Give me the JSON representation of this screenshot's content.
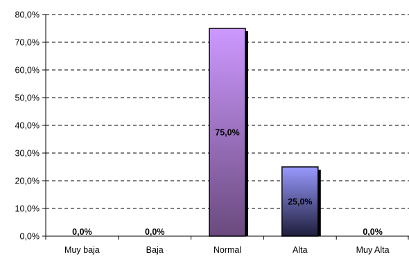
{
  "chart_data": {
    "type": "bar",
    "categories": [
      "Muy baja",
      "Baja",
      "Normal",
      "Alta",
      "Muy Alta"
    ],
    "values": [
      0.0,
      0.0,
      75.0,
      25.0,
      0.0
    ],
    "value_labels": [
      "0,0%",
      "0,0%",
      "75,0%",
      "25,0%",
      "0,0%"
    ],
    "ylim": [
      0,
      80
    ],
    "yticks": [
      0,
      10,
      20,
      30,
      40,
      50,
      60,
      70,
      80
    ],
    "ytick_labels": [
      "0,0%",
      "10,0%",
      "20,0%",
      "30,0%",
      "40,0%",
      "50,0%",
      "60,0%",
      "70,0%",
      "80,0%"
    ],
    "grid": "horizontal dashed",
    "title": "",
    "xlabel": "",
    "ylabel": "",
    "bar_colors": [
      {
        "top": "#cc99ff",
        "bottom": "#6a4a7e"
      },
      {
        "top": "#cc99ff",
        "bottom": "#6a4a7e"
      },
      {
        "top": "#cc99ff",
        "bottom": "#6a4a7e"
      },
      {
        "top": "#9999ff",
        "bottom": "#1e1e3c"
      },
      {
        "top": "#9999ff",
        "bottom": "#1e1e3c"
      }
    ]
  }
}
